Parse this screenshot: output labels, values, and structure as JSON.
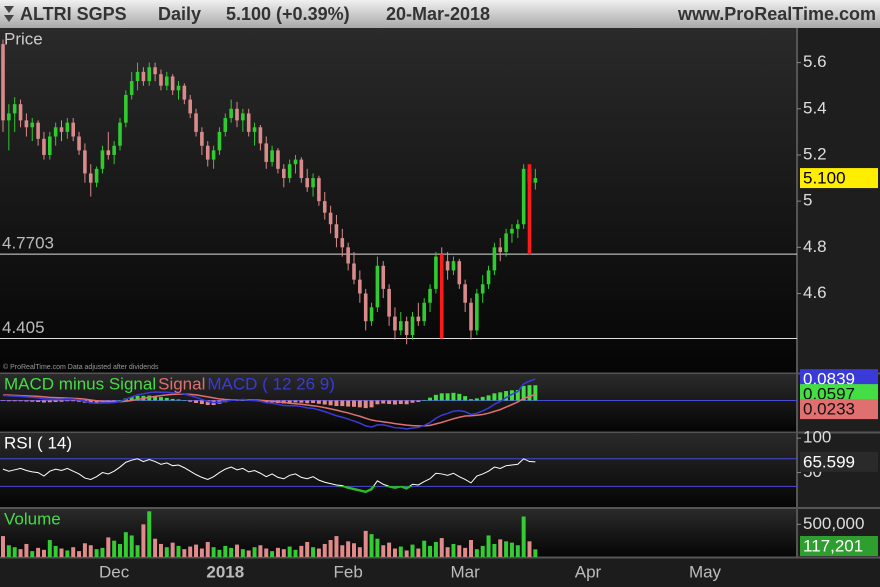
{
  "header": {
    "symbol": "ALTRI SGPS",
    "period": "Daily",
    "quote": "5.100 (+0.39%)",
    "date": "20-Mar-2018",
    "site": "www.ProRealTime.com"
  },
  "x_axis": {
    "categories": [
      null,
      null,
      null,
      null,
      null,
      null,
      null,
      null,
      null,
      null,
      null,
      null,
      null,
      null,
      null,
      null,
      null,
      null,
      null,
      "Dec",
      null,
      null,
      null,
      null,
      null,
      null,
      null,
      null,
      null,
      null,
      null,
      null,
      null,
      null,
      null,
      null,
      null,
      null,
      "2018",
      null,
      null,
      null,
      null,
      null,
      null,
      null,
      null,
      null,
      null,
      null,
      null,
      null,
      null,
      null,
      null,
      null,
      null,
      null,
      null,
      "Feb",
      null,
      null,
      null,
      null,
      null,
      null,
      null,
      null,
      null,
      null,
      null,
      null,
      null,
      null,
      null,
      null,
      null,
      null,
      null,
      "Mar",
      null,
      null,
      null,
      null,
      null,
      null,
      null,
      null,
      null,
      null,
      null,
      null,
      null,
      null,
      null,
      null,
      null,
      null,
      null,
      null,
      "Apr",
      null,
      null,
      null,
      null,
      null,
      null,
      null,
      null,
      null,
      null,
      null,
      null,
      null,
      null,
      null,
      null,
      null,
      null,
      null,
      "May",
      null,
      null,
      null,
      null,
      null,
      null,
      null,
      null,
      null,
      null,
      null,
      null,
      null,
      null,
      null
    ]
  },
  "chart_data": [
    {
      "type": "candlestick",
      "title": "Price",
      "note": "© ProRealTime.com Data adjusted after dividends",
      "ohlc": [
        [
          5.68,
          5.7,
          5.3,
          5.35
        ],
        [
          5.35,
          5.42,
          5.22,
          5.38
        ],
        [
          5.38,
          5.45,
          5.3,
          5.42
        ],
        [
          5.42,
          5.44,
          5.32,
          5.35
        ],
        [
          5.35,
          5.38,
          5.28,
          5.32
        ],
        [
          5.32,
          5.36,
          5.26,
          5.34
        ],
        [
          5.34,
          5.35,
          5.24,
          5.27
        ],
        [
          5.27,
          5.3,
          5.18,
          5.2
        ],
        [
          5.2,
          5.3,
          5.18,
          5.28
        ],
        [
          5.28,
          5.34,
          5.24,
          5.32
        ],
        [
          5.32,
          5.35,
          5.26,
          5.3
        ],
        [
          5.3,
          5.36,
          5.27,
          5.34
        ],
        [
          5.34,
          5.36,
          5.26,
          5.28
        ],
        [
          5.28,
          5.3,
          5.2,
          5.22
        ],
        [
          5.22,
          5.25,
          5.08,
          5.12
        ],
        [
          5.12,
          5.16,
          5.02,
          5.08
        ],
        [
          5.08,
          5.15,
          5.06,
          5.14
        ],
        [
          5.14,
          5.24,
          5.12,
          5.22
        ],
        [
          5.22,
          5.3,
          5.18,
          5.2
        ],
        [
          5.2,
          5.26,
          5.16,
          5.24
        ],
        [
          5.24,
          5.36,
          5.22,
          5.34
        ],
        [
          5.34,
          5.48,
          5.32,
          5.46
        ],
        [
          5.46,
          5.56,
          5.44,
          5.52
        ],
        [
          5.52,
          5.6,
          5.48,
          5.56
        ],
        [
          5.56,
          5.58,
          5.5,
          5.52
        ],
        [
          5.52,
          5.6,
          5.5,
          5.58
        ],
        [
          5.58,
          5.6,
          5.52,
          5.55
        ],
        [
          5.55,
          5.57,
          5.48,
          5.5
        ],
        [
          5.5,
          5.56,
          5.48,
          5.54
        ],
        [
          5.54,
          5.55,
          5.46,
          5.48
        ],
        [
          5.48,
          5.52,
          5.44,
          5.5
        ],
        [
          5.5,
          5.51,
          5.42,
          5.44
        ],
        [
          5.44,
          5.46,
          5.36,
          5.38
        ],
        [
          5.38,
          5.4,
          5.28,
          5.3
        ],
        [
          5.3,
          5.32,
          5.2,
          5.24
        ],
        [
          5.24,
          5.26,
          5.15,
          5.18
        ],
        [
          5.18,
          5.24,
          5.14,
          5.22
        ],
        [
          5.22,
          5.32,
          5.2,
          5.3
        ],
        [
          5.3,
          5.38,
          5.28,
          5.36
        ],
        [
          5.36,
          5.44,
          5.34,
          5.4
        ],
        [
          5.4,
          5.43,
          5.32,
          5.35
        ],
        [
          5.35,
          5.4,
          5.3,
          5.38
        ],
        [
          5.38,
          5.4,
          5.28,
          5.3
        ],
        [
          5.3,
          5.34,
          5.24,
          5.32
        ],
        [
          5.32,
          5.33,
          5.22,
          5.25
        ],
        [
          5.25,
          5.28,
          5.14,
          5.17
        ],
        [
          5.17,
          5.24,
          5.15,
          5.22
        ],
        [
          5.22,
          5.23,
          5.12,
          5.14
        ],
        [
          5.14,
          5.16,
          5.06,
          5.1
        ],
        [
          5.1,
          5.18,
          5.08,
          5.16
        ],
        [
          5.16,
          5.2,
          5.12,
          5.18
        ],
        [
          5.18,
          5.19,
          5.08,
          5.1
        ],
        [
          5.1,
          5.14,
          5.04,
          5.06
        ],
        [
          5.06,
          5.12,
          5.02,
          5.1
        ],
        [
          5.1,
          5.11,
          4.98,
          5.0
        ],
        [
          5.0,
          5.04,
          4.92,
          4.95
        ],
        [
          4.95,
          4.98,
          4.86,
          4.9
        ],
        [
          4.9,
          4.94,
          4.8,
          4.84
        ],
        [
          4.84,
          4.88,
          4.76,
          4.8
        ],
        [
          4.8,
          4.82,
          4.7,
          4.73
        ],
        [
          4.73,
          4.78,
          4.64,
          4.66
        ],
        [
          4.66,
          4.7,
          4.56,
          4.6
        ],
        [
          4.6,
          4.62,
          4.44,
          4.48
        ],
        [
          4.48,
          4.56,
          4.46,
          4.54
        ],
        [
          4.54,
          4.76,
          4.52,
          4.72
        ],
        [
          4.72,
          4.74,
          4.58,
          4.62
        ],
        [
          4.62,
          4.64,
          4.46,
          4.5
        ],
        [
          4.5,
          4.54,
          4.4,
          4.44
        ],
        [
          4.44,
          4.52,
          4.42,
          4.48
        ],
        [
          4.48,
          4.5,
          4.38,
          4.42
        ],
        [
          4.42,
          4.52,
          4.4,
          4.5
        ],
        [
          4.5,
          4.56,
          4.46,
          4.48
        ],
        [
          4.48,
          4.58,
          4.46,
          4.56
        ],
        [
          4.56,
          4.64,
          4.52,
          4.62
        ],
        [
          4.62,
          4.78,
          4.6,
          4.76
        ],
        [
          4.76,
          4.8,
          4.7,
          4.74
        ],
        [
          4.74,
          4.78,
          4.66,
          4.7
        ],
        [
          4.7,
          4.76,
          4.68,
          4.74
        ],
        [
          4.74,
          4.75,
          4.62,
          4.64
        ],
        [
          4.64,
          4.66,
          4.52,
          4.56
        ],
        [
          4.56,
          4.58,
          4.4,
          4.44
        ],
        [
          4.44,
          4.62,
          4.42,
          4.6
        ],
        [
          4.6,
          4.68,
          4.56,
          4.64
        ],
        [
          4.64,
          4.72,
          4.62,
          4.7
        ],
        [
          4.7,
          4.82,
          4.68,
          4.8
        ],
        [
          4.8,
          4.84,
          4.74,
          4.78
        ],
        [
          4.78,
          4.88,
          4.76,
          4.86
        ],
        [
          4.86,
          4.9,
          4.82,
          4.88
        ],
        [
          4.88,
          4.92,
          4.84,
          4.9
        ],
        [
          4.9,
          5.16,
          4.88,
          5.14
        ],
        [
          5.14,
          5.15,
          5.06,
          5.08
        ],
        [
          5.08,
          5.14,
          5.05,
          5.1
        ]
      ],
      "up_color": "#2fcb2f",
      "down_color": "#d98a8a",
      "ylim": [
        4.26,
        5.75
      ],
      "yticks": [
        4.6,
        4.8,
        5,
        5.2,
        5.4,
        5.6
      ],
      "hlines": [
        4.7703,
        4.405
      ],
      "highlights": [
        {
          "index": 75,
          "low": 4.405,
          "high": 4.7703
        },
        {
          "index": 90,
          "low": 4.7703,
          "high": 5.16
        }
      ],
      "highlight_color": "#ff1a1a",
      "last_label": "5.100"
    },
    {
      "type": "macd",
      "ylim": [
        -0.12,
        0.1
      ],
      "hlines": [
        0
      ],
      "hline_color": "#4a4ad8",
      "series": [
        {
          "name": "MACD minus Signal",
          "color": "#44dd44",
          "neg_color": "#e08a8a",
          "last_label": "0.0597",
          "values": [
            -0.002,
            -0.003,
            -0.003,
            -0.003,
            -0.004,
            -0.005,
            -0.006,
            -0.008,
            -0.007,
            -0.006,
            -0.005,
            -0.003,
            -0.003,
            -0.005,
            -0.009,
            -0.011,
            -0.01,
            -0.007,
            -0.006,
            -0.003,
            0.001,
            0.008,
            0.014,
            0.018,
            0.018,
            0.019,
            0.017,
            0.013,
            0.01,
            0.006,
            0.004,
            0.0,
            -0.005,
            -0.01,
            -0.014,
            -0.018,
            -0.018,
            -0.013,
            -0.007,
            -0.002,
            -0.001,
            0.001,
            -0.002,
            -0.002,
            -0.004,
            -0.008,
            -0.008,
            -0.01,
            -0.012,
            -0.01,
            -0.008,
            -0.009,
            -0.011,
            -0.01,
            -0.013,
            -0.016,
            -0.019,
            -0.022,
            -0.022,
            -0.024,
            -0.025,
            -0.027,
            -0.03,
            -0.027,
            -0.015,
            -0.012,
            -0.014,
            -0.016,
            -0.014,
            -0.015,
            -0.009,
            -0.006,
            0.002,
            0.011,
            0.022,
            0.028,
            0.028,
            0.03,
            0.026,
            0.017,
            0.005,
            0.008,
            0.014,
            0.02,
            0.028,
            0.032,
            0.037,
            0.04,
            0.041,
            0.057,
            0.06,
            0.0597
          ]
        },
        {
          "name": "Signal",
          "color": "#e07070",
          "last_label": "0.0233",
          "values": [
            0.022,
            0.021,
            0.02,
            0.019,
            0.018,
            0.017,
            0.016,
            0.014,
            0.012,
            0.011,
            0.01,
            0.009,
            0.008,
            0.007,
            0.005,
            0.002,
            -0.001,
            -0.003,
            -0.004,
            -0.005,
            -0.005,
            -0.003,
            0.0,
            0.004,
            0.008,
            0.012,
            0.016,
            0.019,
            0.022,
            0.024,
            0.025,
            0.025,
            0.024,
            0.022,
            0.018,
            0.014,
            0.01,
            0.006,
            0.004,
            0.003,
            0.003,
            0.003,
            0.003,
            0.002,
            0.001,
            -0.001,
            -0.003,
            -0.005,
            -0.008,
            -0.011,
            -0.013,
            -0.015,
            -0.018,
            -0.021,
            -0.024,
            -0.028,
            -0.033,
            -0.038,
            -0.044,
            -0.049,
            -0.056,
            -0.062,
            -0.07,
            -0.077,
            -0.081,
            -0.084,
            -0.087,
            -0.091,
            -0.094,
            -0.097,
            -0.099,
            -0.1,
            -0.1,
            -0.098,
            -0.092,
            -0.086,
            -0.079,
            -0.072,
            -0.066,
            -0.061,
            -0.06,
            -0.058,
            -0.055,
            -0.05,
            -0.043,
            -0.036,
            -0.026,
            -0.016,
            -0.006,
            0.008,
            0.016,
            0.0233
          ]
        },
        {
          "name": "MACD ( 12 26 9)",
          "color": "#3a3ad8",
          "last_label": "0.0839",
          "values": [
            0.02,
            0.018,
            0.017,
            0.016,
            0.014,
            0.012,
            0.01,
            0.006,
            0.005,
            0.005,
            0.005,
            0.006,
            0.005,
            0.002,
            -0.004,
            -0.009,
            -0.011,
            -0.01,
            -0.01,
            -0.008,
            -0.004,
            0.005,
            0.014,
            0.022,
            0.026,
            0.031,
            0.033,
            0.032,
            0.032,
            0.03,
            0.029,
            0.025,
            0.019,
            0.012,
            0.004,
            -0.004,
            -0.008,
            -0.007,
            -0.003,
            0.001,
            0.002,
            0.004,
            0.001,
            0.0,
            -0.003,
            -0.009,
            -0.011,
            -0.015,
            -0.02,
            -0.021,
            -0.021,
            -0.024,
            -0.029,
            -0.031,
            -0.037,
            -0.044,
            -0.052,
            -0.06,
            -0.066,
            -0.073,
            -0.081,
            -0.089,
            -0.1,
            -0.104,
            -0.096,
            -0.096,
            -0.101,
            -0.107,
            -0.108,
            -0.112,
            -0.108,
            -0.106,
            -0.098,
            -0.087,
            -0.07,
            -0.058,
            -0.051,
            -0.042,
            -0.04,
            -0.044,
            -0.055,
            -0.05,
            -0.041,
            -0.03,
            -0.015,
            -0.004,
            0.011,
            0.024,
            0.035,
            0.065,
            0.076,
            0.0839
          ]
        }
      ]
    },
    {
      "type": "line",
      "title": "RSI ( 14)",
      "color": "#ffffff",
      "oversold_color": "#2db82d",
      "levels": [
        70,
        30
      ],
      "level_color": "#4a4ad8",
      "ylim": [
        0,
        106
      ],
      "yticks": [
        50,
        100
      ],
      "last_label": "65.599",
      "values": [
        55,
        52,
        54,
        56,
        53,
        51,
        50,
        45,
        52,
        55,
        53,
        56,
        52,
        48,
        42,
        40,
        44,
        50,
        48,
        52,
        58,
        65,
        68,
        70,
        66,
        69,
        66,
        62,
        64,
        60,
        61,
        57,
        52,
        47,
        43,
        40,
        44,
        50,
        55,
        58,
        54,
        56,
        51,
        53,
        49,
        44,
        48,
        43,
        41,
        46,
        48,
        43,
        41,
        44,
        39,
        36,
        34,
        32,
        31,
        28,
        26,
        24,
        22,
        26,
        38,
        33,
        30,
        28,
        30,
        27,
        33,
        32,
        37,
        41,
        49,
        48,
        46,
        49,
        44,
        40,
        35,
        45,
        48,
        52,
        58,
        56,
        60,
        61,
        62,
        70,
        66,
        65.599
      ]
    },
    {
      "type": "bar",
      "title": "Volume",
      "color": "#33cc33",
      "down_color": "#e08a8a",
      "ylim": [
        0,
        735000
      ],
      "yticks": [
        {
          "value": 500000,
          "label": "500,000"
        }
      ],
      "last_label": "117,201",
      "values": [
        320000,
        180000,
        150000,
        120000,
        200000,
        90000,
        140000,
        110000,
        260000,
        170000,
        130000,
        100000,
        150000,
        90000,
        210000,
        180000,
        120000,
        140000,
        300000,
        250000,
        200000,
        380000,
        330000,
        180000,
        500000,
        700000,
        280000,
        200000,
        150000,
        220000,
        170000,
        120000,
        160000,
        190000,
        130000,
        230000,
        150000,
        110000,
        170000,
        140000,
        190000,
        120000,
        100000,
        150000,
        180000,
        130000,
        90000,
        140000,
        120000,
        160000,
        110000,
        170000,
        230000,
        150000,
        130000,
        200000,
        260000,
        320000,
        180000,
        240000,
        210000,
        150000,
        400000,
        350000,
        280000,
        180000,
        220000,
        130000,
        160000,
        100000,
        190000,
        130000,
        250000,
        170000,
        230000,
        290000,
        150000,
        200000,
        180000,
        140000,
        260000,
        120000,
        170000,
        330000,
        200000,
        270000,
        240000,
        220000,
        180000,
        620000,
        240000,
        117201
      ]
    }
  ]
}
